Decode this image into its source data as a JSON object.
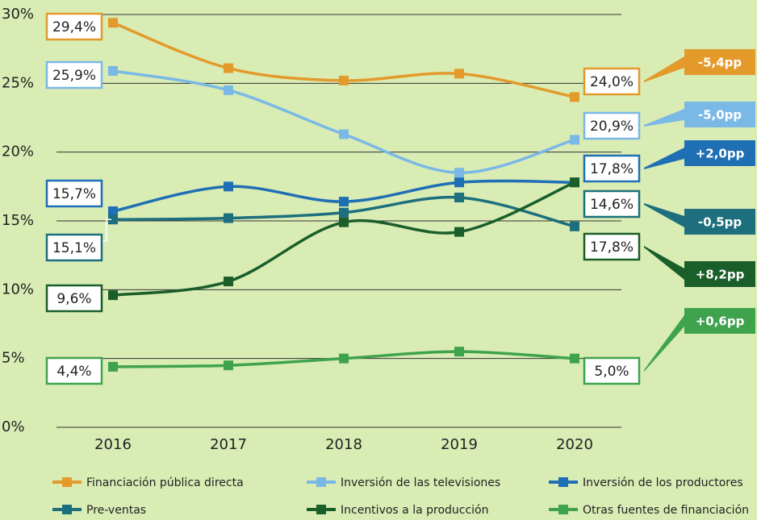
{
  "chart_data": {
    "type": "line",
    "categories": [
      "2016",
      "2017",
      "2018",
      "2019",
      "2020"
    ],
    "ylim": [
      0,
      30
    ],
    "yticks": [
      {
        "value": 0,
        "label": "0%"
      },
      {
        "value": 5,
        "label": "5%"
      },
      {
        "value": 10,
        "label": "10%"
      },
      {
        "value": 15,
        "label": "15%"
      },
      {
        "value": 20,
        "label": "20%"
      },
      {
        "value": 25,
        "label": "25%"
      },
      {
        "value": 30,
        "label": "30%"
      }
    ],
    "grid": true,
    "series": [
      {
        "name": "Financiación pública directa",
        "color": "#e39a2b",
        "values": [
          29.4,
          26.1,
          25.2,
          25.7,
          24.0
        ],
        "value_labels": [
          "29,4%",
          null,
          null,
          null,
          "24,0%"
        ],
        "change": "-5,4pp"
      },
      {
        "name": "Inversión de las televisiones",
        "color": "#7ab8e6",
        "values": [
          25.9,
          24.5,
          21.3,
          18.5,
          20.9
        ],
        "value_labels": [
          "25,9%",
          null,
          null,
          null,
          "20,9%"
        ],
        "change": "-5,0pp"
      },
      {
        "name": "Inversión de los productores",
        "color": "#1f6fb5",
        "values": [
          15.7,
          17.5,
          16.4,
          17.8,
          17.8
        ],
        "value_labels": [
          "15,7%",
          null,
          null,
          null,
          "17,8%"
        ],
        "change": "+2,0pp"
      },
      {
        "name": "Pre-ventas",
        "color": "#1d6f7d",
        "values": [
          15.1,
          15.2,
          15.6,
          16.7,
          14.6
        ],
        "value_labels": [
          "15,1%",
          null,
          null,
          null,
          "14,6%"
        ],
        "change": "-0,5pp"
      },
      {
        "name": "Incentivos a la producción",
        "color": "#1a5e2a",
        "values": [
          9.6,
          10.6,
          14.9,
          14.2,
          17.8
        ],
        "value_labels": [
          "9,6%",
          null,
          null,
          null,
          "17,8%"
        ],
        "change": "+8,2pp"
      },
      {
        "name": "Otras fuentes de financiación",
        "color": "#3fa34d",
        "values": [
          4.4,
          4.5,
          5.0,
          5.5,
          5.0
        ],
        "value_labels": [
          "4,4%",
          null,
          null,
          null,
          "5,0%"
        ],
        "change": "+0,6pp"
      }
    ]
  }
}
